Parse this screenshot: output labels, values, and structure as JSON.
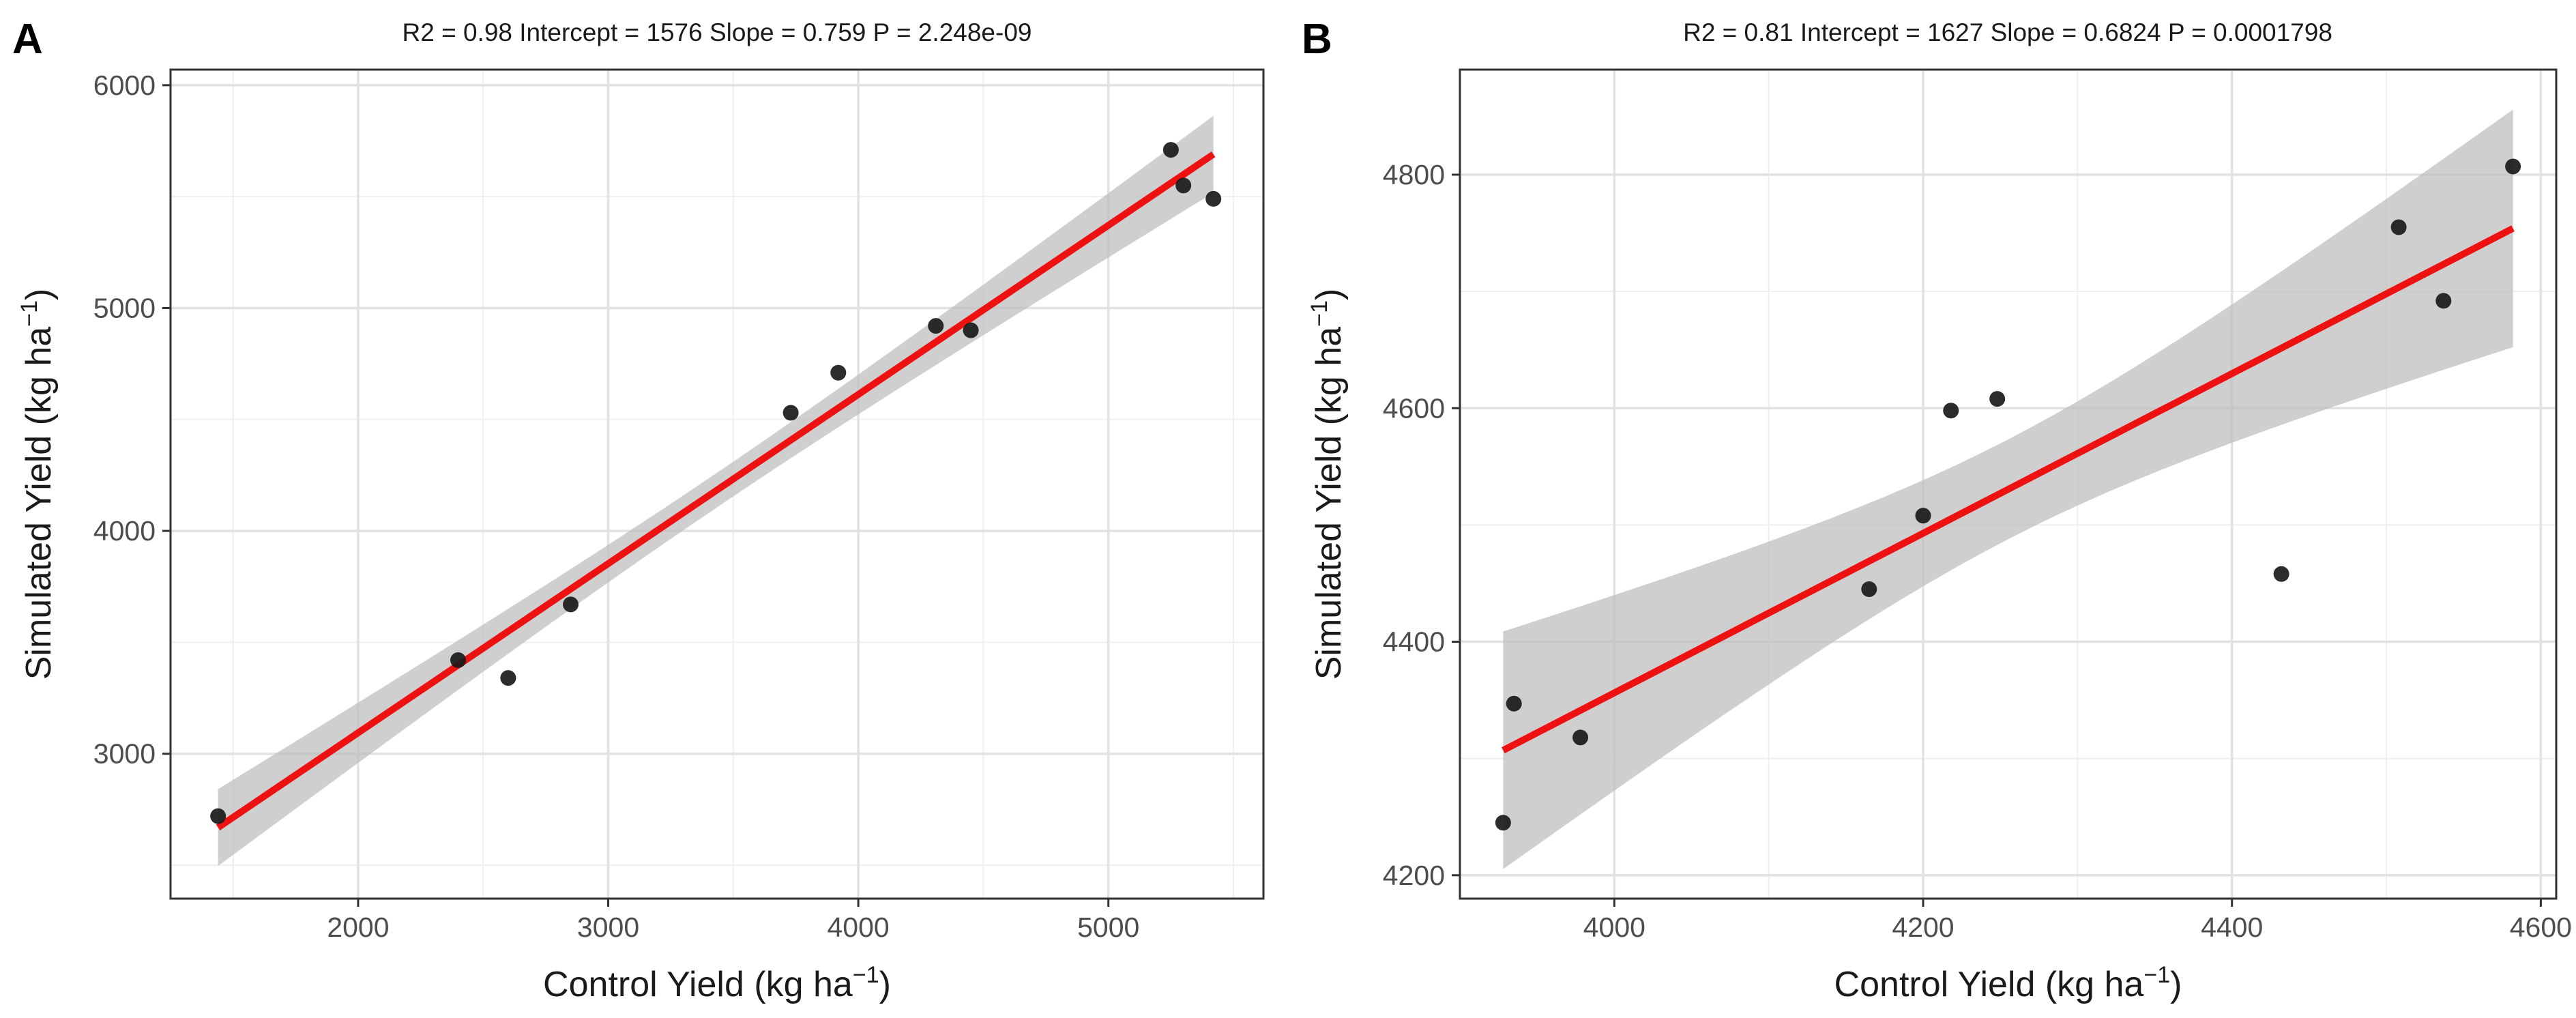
{
  "colors": {
    "point": "#1a1a1a",
    "fit_line": "#ee1111",
    "ribbon": "#bdbdbd",
    "grid_major": "#e2e2e2",
    "grid_minor": "#efefef",
    "panel_border": "#333333"
  },
  "chart_data": [
    {
      "type": "scatter",
      "panel_label": "A",
      "title": "R2 =  0.98 Intercept = 1576  Slope = 0.759  P = 2.248e-09",
      "xlabel": "Control Yield (kg ha",
      "ylabel": "Simulated Yield (kg ha",
      "unit_exponent": "−1",
      "unit_close": ")",
      "xlim": [
        1250,
        5620
      ],
      "ylim": [
        2350,
        6070
      ],
      "xticks": [
        2000,
        3000,
        4000,
        5000
      ],
      "yticks": [
        3000,
        4000,
        5000,
        6000
      ],
      "x": [
        1440,
        2400,
        2600,
        2850,
        3730,
        3920,
        4310,
        4450,
        5250,
        5300,
        5420
      ],
      "y": [
        2720,
        3420,
        3340,
        3670,
        4530,
        4710,
        4920,
        4900,
        5710,
        5550,
        5490
      ],
      "fit": {
        "x0": 1440,
        "y0": 2669,
        "x1": 5420,
        "y1": 5690
      },
      "ci_upper_y": [
        2870,
        5850
      ],
      "ci_lower_y": [
        2480,
        5550
      ],
      "grid": true
    },
    {
      "type": "scatter",
      "panel_label": "B",
      "title": "R2 =  0.81 Intercept = 1627  Slope = 0.6824  P = 0.0001798",
      "xlabel": "Control Yield (kg ha",
      "ylabel": "Simulated Yield (kg ha",
      "unit_exponent": "−1",
      "unit_close": ")",
      "xlim": [
        3900,
        4610
      ],
      "ylim": [
        4180,
        4890
      ],
      "xticks": [
        4000,
        4200,
        4400,
        4600
      ],
      "yticks": [
        4200,
        4400,
        4600,
        4800
      ],
      "x": [
        3928,
        3935,
        3978,
        4165,
        4200,
        4218,
        4248,
        4432,
        4508,
        4537,
        4582
      ],
      "y": [
        4245,
        4347,
        4318,
        4445,
        4508,
        4598,
        4608,
        4458,
        4755,
        4692,
        4807
      ],
      "fit": {
        "x0": 3928,
        "y0": 4307,
        "x1": 4582,
        "y1": 4754
      },
      "ci_upper_y": [
        4408,
        4858
      ],
      "ci_lower_y": [
        4207,
        4652
      ],
      "grid": true
    }
  ]
}
